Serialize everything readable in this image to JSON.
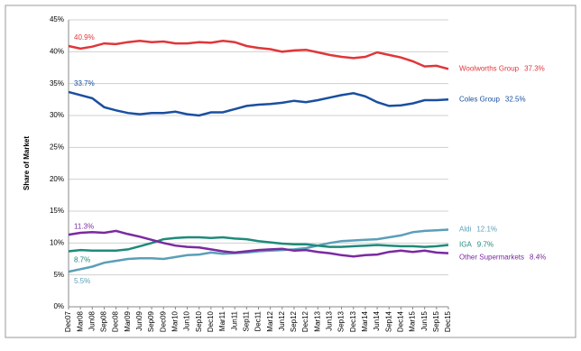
{
  "chart_data": {
    "type": "line",
    "y_label": "Share of Market",
    "categories": [
      "Dec07",
      "Mar08",
      "Jun08",
      "Sep08",
      "Dec08",
      "Mar09",
      "Jun09",
      "Sep09",
      "Dec09",
      "Mar10",
      "Jun10",
      "Sep10",
      "Dec10",
      "Mar11",
      "Jun11",
      "Sep11",
      "Dec11",
      "Mar12",
      "Jun12",
      "Sep12",
      "Dec12",
      "Mar13",
      "Jun13",
      "Sep13",
      "Dec13",
      "Mar14",
      "Jun14",
      "Sep14",
      "Dec14",
      "Mar15",
      "Jun15",
      "Sep15",
      "Dec15"
    ],
    "ylim": [
      0,
      45
    ],
    "yticks": [
      {
        "value": 0,
        "label": "0%"
      },
      {
        "value": 5,
        "label": "5%"
      },
      {
        "value": 10,
        "label": "10%"
      },
      {
        "value": 15,
        "label": "15%"
      },
      {
        "value": 20,
        "label": "20%"
      },
      {
        "value": 25,
        "label": "25%"
      },
      {
        "value": 30,
        "label": "30%"
      },
      {
        "value": 35,
        "label": "35%"
      },
      {
        "value": 40,
        "label": "40%"
      },
      {
        "value": 45,
        "label": "45%"
      }
    ],
    "grid": true,
    "series": [
      {
        "name": "Woolworths Group",
        "color": "#e0363a",
        "values": [
          40.9,
          40.5,
          40.8,
          41.3,
          41.2,
          41.5,
          41.7,
          41.5,
          41.6,
          41.3,
          41.3,
          41.5,
          41.4,
          41.7,
          41.5,
          40.9,
          40.6,
          40.4,
          40.0,
          40.2,
          40.3,
          39.9,
          39.5,
          39.2,
          39.0,
          39.2,
          39.9,
          39.5,
          39.1,
          38.5,
          37.7,
          37.8,
          37.3
        ],
        "value_labels": [
          "40.9%",
          null,
          null,
          null,
          null,
          null,
          null,
          null,
          null,
          null,
          null,
          null,
          null,
          null,
          null,
          null,
          null,
          null,
          null,
          null,
          null,
          null,
          null,
          null,
          null,
          null,
          null,
          null,
          null,
          null,
          null,
          null,
          "37.3%"
        ]
      },
      {
        "name": "Coles Group",
        "color": "#1a4fa0",
        "values": [
          33.7,
          33.2,
          32.7,
          31.3,
          30.8,
          30.4,
          30.2,
          30.4,
          30.4,
          30.6,
          30.2,
          30.0,
          30.5,
          30.5,
          31.0,
          31.5,
          31.7,
          31.8,
          32.0,
          32.3,
          32.1,
          32.4,
          32.8,
          33.2,
          33.5,
          33.0,
          32.1,
          31.5,
          31.6,
          31.9,
          32.4,
          32.4,
          32.5
        ],
        "value_labels": [
          "33.7%",
          null,
          null,
          null,
          null,
          null,
          null,
          null,
          null,
          null,
          null,
          null,
          null,
          null,
          null,
          null,
          null,
          null,
          null,
          null,
          null,
          null,
          null,
          null,
          null,
          null,
          null,
          null,
          null,
          null,
          null,
          null,
          "32.5%"
        ]
      },
      {
        "name": "Aldi",
        "color": "#5a9fb8",
        "values": [
          5.5,
          5.9,
          6.3,
          6.9,
          7.2,
          7.5,
          7.6,
          7.6,
          7.5,
          7.8,
          8.1,
          8.2,
          8.5,
          8.3,
          8.4,
          8.5,
          8.7,
          8.8,
          8.9,
          9.0,
          9.2,
          9.6,
          10.0,
          10.3,
          10.4,
          10.5,
          10.6,
          10.9,
          11.2,
          11.7,
          11.9,
          12.0,
          12.1
        ],
        "value_labels": [
          "5.5%",
          null,
          null,
          null,
          null,
          null,
          null,
          null,
          null,
          null,
          null,
          null,
          null,
          null,
          null,
          null,
          null,
          null,
          null,
          null,
          null,
          null,
          null,
          null,
          null,
          null,
          null,
          null,
          null,
          null,
          null,
          null,
          "12.1%"
        ]
      },
      {
        "name": "IGA",
        "color": "#1f8a7a",
        "values": [
          8.7,
          8.9,
          8.8,
          8.8,
          8.8,
          9.0,
          9.5,
          10.0,
          10.6,
          10.8,
          10.9,
          10.9,
          10.8,
          10.9,
          10.7,
          10.6,
          10.3,
          10.1,
          9.9,
          9.8,
          9.8,
          9.6,
          9.4,
          9.4,
          9.5,
          9.6,
          9.7,
          9.6,
          9.5,
          9.5,
          9.4,
          9.5,
          9.7
        ],
        "value_labels": [
          "8.7%",
          null,
          null,
          null,
          null,
          null,
          null,
          null,
          null,
          null,
          null,
          null,
          null,
          null,
          null,
          null,
          null,
          null,
          null,
          null,
          null,
          null,
          null,
          null,
          null,
          null,
          null,
          null,
          null,
          null,
          null,
          null,
          "9.7%"
        ]
      },
      {
        "name": "Other Supermarkets",
        "color": "#7a2aa0",
        "values": [
          11.3,
          11.6,
          11.7,
          11.6,
          11.9,
          11.4,
          11.0,
          10.5,
          10.0,
          9.6,
          9.4,
          9.3,
          9.0,
          8.7,
          8.5,
          8.7,
          8.9,
          9.0,
          9.1,
          8.8,
          8.9,
          8.6,
          8.4,
          8.1,
          7.9,
          8.1,
          8.2,
          8.6,
          8.8,
          8.6,
          8.8,
          8.5,
          8.4
        ],
        "value_labels": [
          "11.3%",
          null,
          null,
          null,
          null,
          null,
          null,
          null,
          null,
          null,
          null,
          null,
          null,
          null,
          null,
          null,
          null,
          null,
          null,
          null,
          null,
          null,
          null,
          null,
          null,
          null,
          null,
          null,
          null,
          null,
          null,
          null,
          "8.4%"
        ]
      }
    ]
  }
}
